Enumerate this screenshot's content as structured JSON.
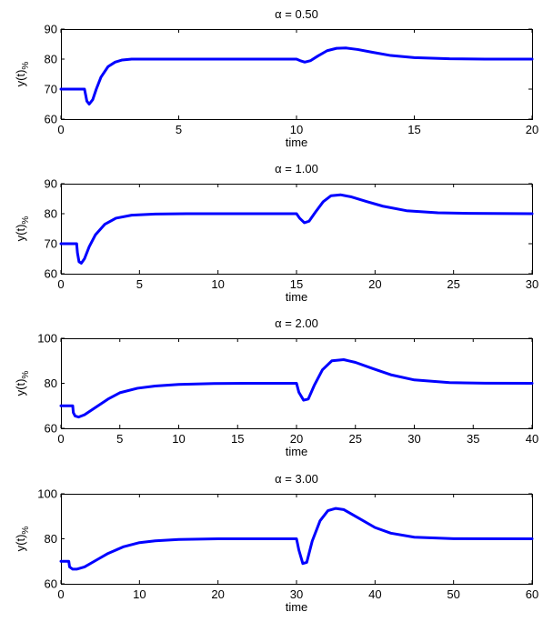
{
  "chart_data": [
    {
      "type": "line",
      "title": "α = 0.50",
      "xlabel": "time",
      "ylabel": "y(t)%",
      "xlim": [
        0,
        20
      ],
      "ylim": [
        60,
        90
      ],
      "xticks": [
        0,
        5,
        10,
        15,
        20
      ],
      "yticks": [
        60,
        70,
        80,
        90
      ],
      "grid": false,
      "color": "#0000ff",
      "series": [
        {
          "x": [
            0,
            1.0,
            1.05,
            1.1,
            1.2,
            1.35,
            1.5,
            1.7,
            2.0,
            2.3,
            2.6,
            3.0,
            3.5,
            4.0,
            5.0,
            8.0,
            10.0,
            10.15,
            10.35,
            10.6,
            10.9,
            11.3,
            11.7,
            12.1,
            12.6,
            13.2,
            14.0,
            15.0,
            16.5,
            18.0,
            20.0
          ],
          "y": [
            70,
            70,
            68,
            66,
            65,
            66.5,
            70,
            74,
            77.5,
            79,
            79.7,
            80,
            80,
            80,
            80,
            80,
            80,
            79.5,
            79,
            79.5,
            81,
            82.8,
            83.6,
            83.7,
            83.2,
            82.3,
            81.2,
            80.5,
            80.1,
            80,
            80
          ]
        }
      ]
    },
    {
      "type": "line",
      "title": "α = 1.00",
      "xlabel": "time",
      "ylabel": "y(t)%",
      "xlim": [
        0,
        30
      ],
      "ylim": [
        60,
        90
      ],
      "xticks": [
        0,
        5,
        10,
        15,
        20,
        25,
        30
      ],
      "yticks": [
        60,
        70,
        80,
        90
      ],
      "grid": false,
      "color": "#0000ff",
      "series": [
        {
          "x": [
            0,
            1.0,
            1.05,
            1.15,
            1.3,
            1.5,
            1.8,
            2.2,
            2.8,
            3.5,
            4.5,
            6.0,
            8.0,
            10.0,
            15.0,
            15.2,
            15.5,
            15.8,
            16.2,
            16.7,
            17.2,
            17.8,
            18.5,
            19.5,
            20.5,
            22.0,
            24.0,
            26.0,
            30.0
          ],
          "y": [
            70,
            70,
            67,
            64,
            63.5,
            65,
            69,
            73,
            76.5,
            78.5,
            79.5,
            79.9,
            80,
            80,
            80,
            78.5,
            77,
            77.5,
            80.5,
            84,
            86,
            86.3,
            85.6,
            84,
            82.5,
            81,
            80.3,
            80.1,
            80
          ]
        }
      ]
    },
    {
      "type": "line",
      "title": "α = 2.00",
      "xlabel": "time",
      "ylabel": "y(t)%",
      "xlim": [
        0,
        40
      ],
      "ylim": [
        60,
        100
      ],
      "xticks": [
        0,
        5,
        10,
        15,
        20,
        25,
        30,
        35,
        40
      ],
      "yticks": [
        60,
        80,
        100
      ],
      "grid": false,
      "color": "#0000ff",
      "series": [
        {
          "x": [
            0,
            1.0,
            1.05,
            1.2,
            1.5,
            2.0,
            3.0,
            4.0,
            5.0,
            6.5,
            8.0,
            10.0,
            13.0,
            16.0,
            20.0,
            20.2,
            20.6,
            21.0,
            21.5,
            22.2,
            23.0,
            24.0,
            25.0,
            26.5,
            28.0,
            30.0,
            33.0,
            36.0,
            40.0
          ],
          "y": [
            70,
            70,
            67,
            65.5,
            65,
            66,
            69.5,
            73,
            75.8,
            77.8,
            78.8,
            79.5,
            79.9,
            80,
            80,
            76,
            72.5,
            73,
            79,
            86,
            90,
            90.5,
            89.3,
            86.5,
            83.8,
            81.5,
            80.3,
            80.05,
            80
          ]
        }
      ]
    },
    {
      "type": "line",
      "title": "α = 3.00",
      "xlabel": "time",
      "ylabel": "y(t)%",
      "xlim": [
        0,
        60
      ],
      "ylim": [
        60,
        100
      ],
      "xticks": [
        0,
        10,
        20,
        30,
        40,
        50,
        60
      ],
      "yticks": [
        60,
        80,
        100
      ],
      "grid": false,
      "color": "#0000ff",
      "series": [
        {
          "x": [
            0,
            1.0,
            1.1,
            1.5,
            2.0,
            3.0,
            4.5,
            6.0,
            8.0,
            10.0,
            12.0,
            15.0,
            20.0,
            25.0,
            30.0,
            30.3,
            30.8,
            31.3,
            32.0,
            33.0,
            34.0,
            35.0,
            36.0,
            38.0,
            40.0,
            42.0,
            45.0,
            50.0,
            60.0
          ],
          "y": [
            70,
            70,
            67.5,
            66.5,
            66.5,
            67.5,
            70.5,
            73.5,
            76.5,
            78.3,
            79.1,
            79.7,
            80,
            80,
            80,
            75,
            69,
            69.5,
            79,
            88,
            92.5,
            93.5,
            93,
            89,
            85,
            82.5,
            80.7,
            80.05,
            80
          ]
        }
      ]
    }
  ]
}
